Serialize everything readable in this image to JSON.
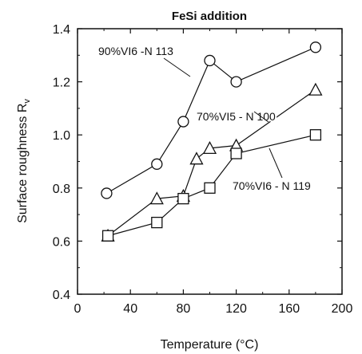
{
  "chart_data": {
    "type": "line",
    "title": "FeSi addition",
    "xlabel": "Temperature (°C)",
    "ylabel": "Surface roughness  R",
    "ylabel_sub": "v",
    "xlim": [
      0,
      200
    ],
    "ylim": [
      0.4,
      1.4
    ],
    "xticks": [
      "0",
      "40",
      "80",
      "120",
      "160",
      "200"
    ],
    "yticks": [
      "0.4",
      "0.6",
      "0.8",
      "1.0",
      "1.2",
      "1.4"
    ],
    "grid": false,
    "series": [
      {
        "name": "90%VI6 -N 113",
        "marker": "circle",
        "x": [
          22,
          60,
          80,
          100,
          120,
          180
        ],
        "y": [
          0.78,
          0.89,
          1.05,
          1.28,
          1.2,
          1.33
        ]
      },
      {
        "name": "70%VI5 - N 100",
        "marker": "triangle",
        "x": [
          23,
          60,
          80,
          90,
          100,
          120,
          180
        ],
        "y": [
          0.62,
          0.76,
          0.77,
          0.91,
          0.95,
          0.96,
          1.17
        ]
      },
      {
        "name": "70%VI6 - N 119",
        "marker": "square",
        "x": [
          23,
          60,
          80,
          100,
          120,
          180
        ],
        "y": [
          0.62,
          0.67,
          0.76,
          0.8,
          0.93,
          1.0
        ]
      }
    ]
  }
}
